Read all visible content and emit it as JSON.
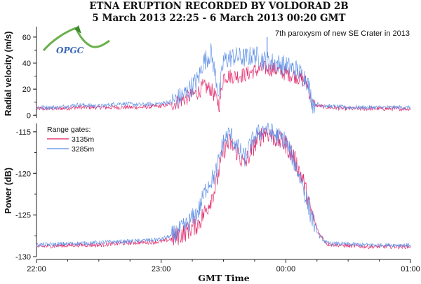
{
  "chart_data": {
    "type": "line",
    "title": "ETNA ERUPTION RECORDED BY VOLDORAD 2B",
    "subtitle": "5 March 2013 22:25 - 6 March 2013 00:20 GMT",
    "xlabel": "GMT Time",
    "x_ticks": [
      "22:00",
      "23:00",
      "00:00",
      "01:00"
    ],
    "xlim": [
      "22:00",
      "01:00"
    ],
    "annotation": "7th paroxysm of new SE Crater in 2013",
    "logo_text": "OPGC",
    "legend_title": "Range gates:",
    "colors": {
      "3135m": "#e0165e",
      "3285m": "#5b8ee6"
    },
    "panels": [
      {
        "name": "velocity",
        "ylabel": "Radial velocity (m/s)",
        "ylim": [
          -2,
          68
        ],
        "y_ticks": [
          0,
          20,
          40,
          60
        ],
        "series": [
          {
            "name": "3135m",
            "x": [
              "22:00",
              "22:10",
              "22:20",
              "22:30",
              "22:40",
              "22:50",
              "23:00",
              "23:06",
              "23:12",
              "23:18",
              "23:20",
              "23:24",
              "23:28",
              "23:30",
              "23:35",
              "23:40",
              "23:45",
              "23:50",
              "23:55",
              "00:00",
              "00:05",
              "00:10",
              "00:13",
              "00:20",
              "00:30",
              "00:40",
              "00:50",
              "01:00"
            ],
            "values": [
              5,
              5,
              6,
              6,
              6,
              6,
              7,
              9,
              13,
              18,
              22,
              20,
              8,
              30,
              30,
              31,
              34,
              36,
              35,
              32,
              30,
              25,
              8,
              6,
              5,
              5,
              5,
              5
            ]
          },
          {
            "name": "3285m",
            "x": [
              "22:00",
              "22:10",
              "22:20",
              "22:30",
              "22:40",
              "22:50",
              "23:00",
              "23:06",
              "23:12",
              "23:18",
              "23:20",
              "23:24",
              "23:28",
              "23:30",
              "23:35",
              "23:40",
              "23:45",
              "23:50",
              "23:55",
              "00:00",
              "00:05",
              "00:10",
              "00:13",
              "00:20",
              "00:30",
              "00:40",
              "00:50",
              "01:00"
            ],
            "values": [
              6,
              6,
              8,
              7,
              9,
              8,
              9,
              11,
              17,
              28,
              40,
              48,
              15,
              42,
              45,
              44,
              46,
              42,
              40,
              38,
              35,
              28,
              9,
              7,
              6,
              6,
              6,
              6
            ]
          }
        ]
      },
      {
        "name": "power",
        "ylabel": "Power (dB)",
        "ylim": [
          -130,
          -114
        ],
        "y_ticks": [
          -130,
          -125,
          -120,
          -115
        ],
        "series": [
          {
            "name": "3135m",
            "x": [
              "22:00",
              "22:10",
              "22:20",
              "22:30",
              "22:40",
              "22:50",
              "23:00",
              "23:06",
              "23:12",
              "23:18",
              "23:22",
              "23:26",
              "23:30",
              "23:33",
              "23:36",
              "23:40",
              "23:45",
              "23:50",
              "23:55",
              "00:00",
              "00:04",
              "00:08",
              "00:12",
              "00:16",
              "00:20",
              "00:30",
              "00:40",
              "00:50",
              "01:00"
            ],
            "values": [
              -128.8,
              -128.7,
              -128.6,
              -128.6,
              -128.4,
              -128.3,
              -128.2,
              -127.8,
              -127,
              -126,
              -124.2,
              -121.8,
              -117.2,
              -116.3,
              -117.2,
              -119,
              -116.5,
              -114.9,
              -115.8,
              -116.5,
              -118.2,
              -120.5,
              -124.5,
              -127.2,
              -128.5,
              -128.7,
              -128.8,
              -128.8,
              -128.8
            ]
          },
          {
            "name": "3285m",
            "x": [
              "22:00",
              "22:10",
              "22:20",
              "22:30",
              "22:40",
              "22:50",
              "23:00",
              "23:06",
              "23:12",
              "23:18",
              "23:22",
              "23:26",
              "23:30",
              "23:33",
              "23:36",
              "23:40",
              "23:45",
              "23:50",
              "23:55",
              "00:00",
              "00:04",
              "00:08",
              "00:12",
              "00:16",
              "00:20",
              "00:30",
              "00:40",
              "00:50",
              "01:00"
            ],
            "values": [
              -128.6,
              -128.5,
              -128.4,
              -128.3,
              -128.2,
              -128.1,
              -127.9,
              -127.4,
              -126.3,
              -124.5,
              -121.5,
              -120.2,
              -116.1,
              -115.2,
              -116.6,
              -118.2,
              -115.6,
              -114.6,
              -115.4,
              -116.1,
              -118.6,
              -121.2,
              -125,
              -127.5,
              -128.4,
              -128.5,
              -128.6,
              -128.6,
              -128.6
            ]
          }
        ]
      }
    ]
  }
}
